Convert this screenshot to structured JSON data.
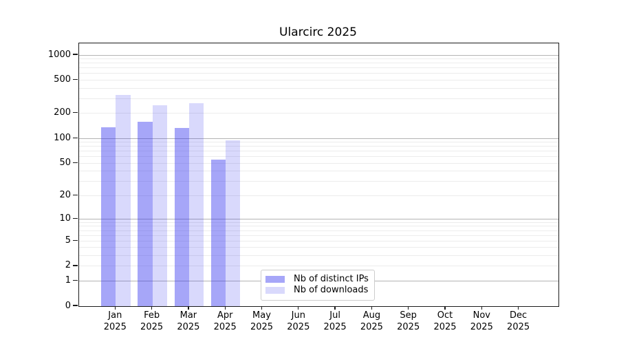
{
  "chart_data": {
    "type": "bar",
    "title": "Ularcirc 2025",
    "yscale": "log1p",
    "ymax": 1000,
    "yticks": [
      0,
      1,
      2,
      5,
      10,
      20,
      50,
      100,
      200,
      500,
      1000
    ],
    "grid": true,
    "grid_major_color": "#b3b3b3",
    "grid_minor_color": "#ececec",
    "axis_color": "#1a1a1a",
    "legend_position": "lower center",
    "categories": [
      {
        "month": "Jan",
        "year": "2025"
      },
      {
        "month": "Feb",
        "year": "2025"
      },
      {
        "month": "Mar",
        "year": "2025"
      },
      {
        "month": "Apr",
        "year": "2025"
      },
      {
        "month": "May",
        "year": "2025"
      },
      {
        "month": "Jun",
        "year": "2025"
      },
      {
        "month": "Jul",
        "year": "2025"
      },
      {
        "month": "Aug",
        "year": "2025"
      },
      {
        "month": "Sep",
        "year": "2025"
      },
      {
        "month": "Oct",
        "year": "2025"
      },
      {
        "month": "Nov",
        "year": "2025"
      },
      {
        "month": "Dec",
        "year": "2025"
      }
    ],
    "series": [
      {
        "name": "Nb of distinct IPs",
        "color_hex": "#a5a5f2",
        "css_color": "rgba(43,43,238,0.42)",
        "values": [
          135,
          160,
          134,
          55,
          0,
          0,
          0,
          0,
          0,
          0,
          0,
          0
        ]
      },
      {
        "name": "Nb of downloads",
        "color_hex": "#d9d9fa",
        "css_color": "rgba(43,43,238,0.18)",
        "values": [
          330,
          250,
          265,
          94,
          0,
          0,
          0,
          0,
          0,
          0,
          0,
          0
        ]
      }
    ]
  }
}
